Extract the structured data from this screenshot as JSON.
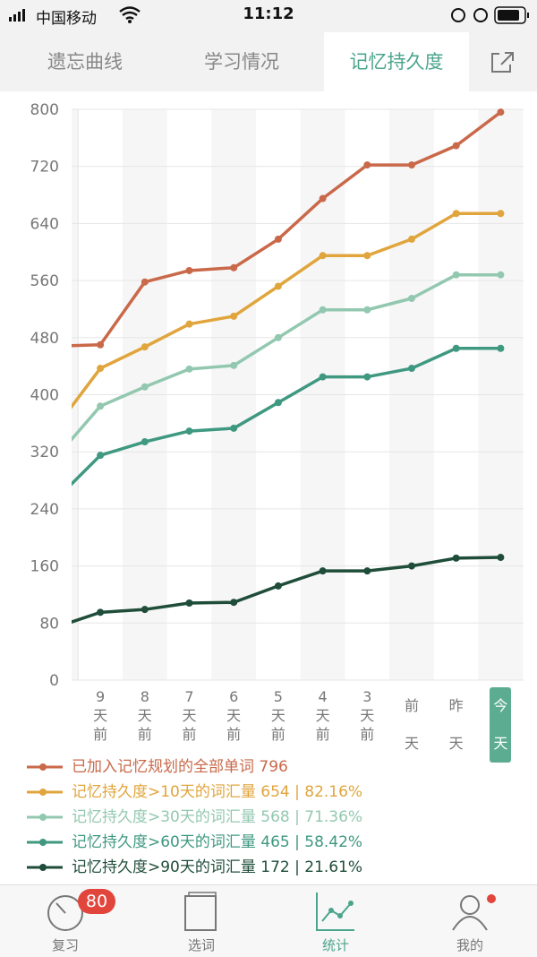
{
  "status_bar": {
    "carrier": "中国移动",
    "time": "11:12"
  },
  "tabs": [
    "遗忘曲线",
    "学习情况",
    "记忆持久度"
  ],
  "active_tab": 2,
  "chart_data": {
    "type": "line",
    "categories": [
      null,
      "9天前",
      "8天前",
      "7天前",
      "6天前",
      "5天前",
      "4天前",
      "3天前",
      "前天",
      "昨天",
      "今天"
    ],
    "highlight_category": 10,
    "ylim": [
      0,
      800
    ],
    "yticks": [
      0,
      80,
      160,
      240,
      320,
      400,
      480,
      560,
      640,
      720,
      800
    ],
    "grid": true,
    "series": [
      {
        "name": "已加入记忆规划的全部单词 796",
        "color": "#c9694a",
        "values": [
          468,
          470,
          558,
          574,
          578,
          618,
          675,
          722,
          722,
          749,
          796
        ]
      },
      {
        "name": "记忆持久度>10天的词汇量 654 | 82.16%",
        "color": "#e0a53c",
        "values": [
          354,
          437,
          467,
          499,
          510,
          552,
          595,
          595,
          618,
          654,
          654
        ]
      },
      {
        "name": "记忆持久度>30天的词汇量 568 | 71.36%",
        "color": "#93c8b0",
        "values": [
          312,
          384,
          411,
          436,
          441,
          480,
          519,
          519,
          535,
          568,
          568
        ]
      },
      {
        "name": "记忆持久度>60天的词汇量 465 | 58.42%",
        "color": "#3f9880",
        "values": [
          253,
          315,
          334,
          349,
          353,
          389,
          425,
          425,
          437,
          465,
          465
        ]
      },
      {
        "name": "记忆持久度>90天的词汇量 172 | 21.61%",
        "color": "#1f4d3a",
        "values": [
          74,
          95,
          99,
          108,
          109,
          132,
          153,
          153,
          160,
          171,
          172
        ]
      }
    ]
  },
  "bottom_nav": [
    {
      "label": "复习",
      "badge": 80
    },
    {
      "label": "选词"
    },
    {
      "label": "统计"
    },
    {
      "label": "我的"
    }
  ],
  "active_nav": 2
}
